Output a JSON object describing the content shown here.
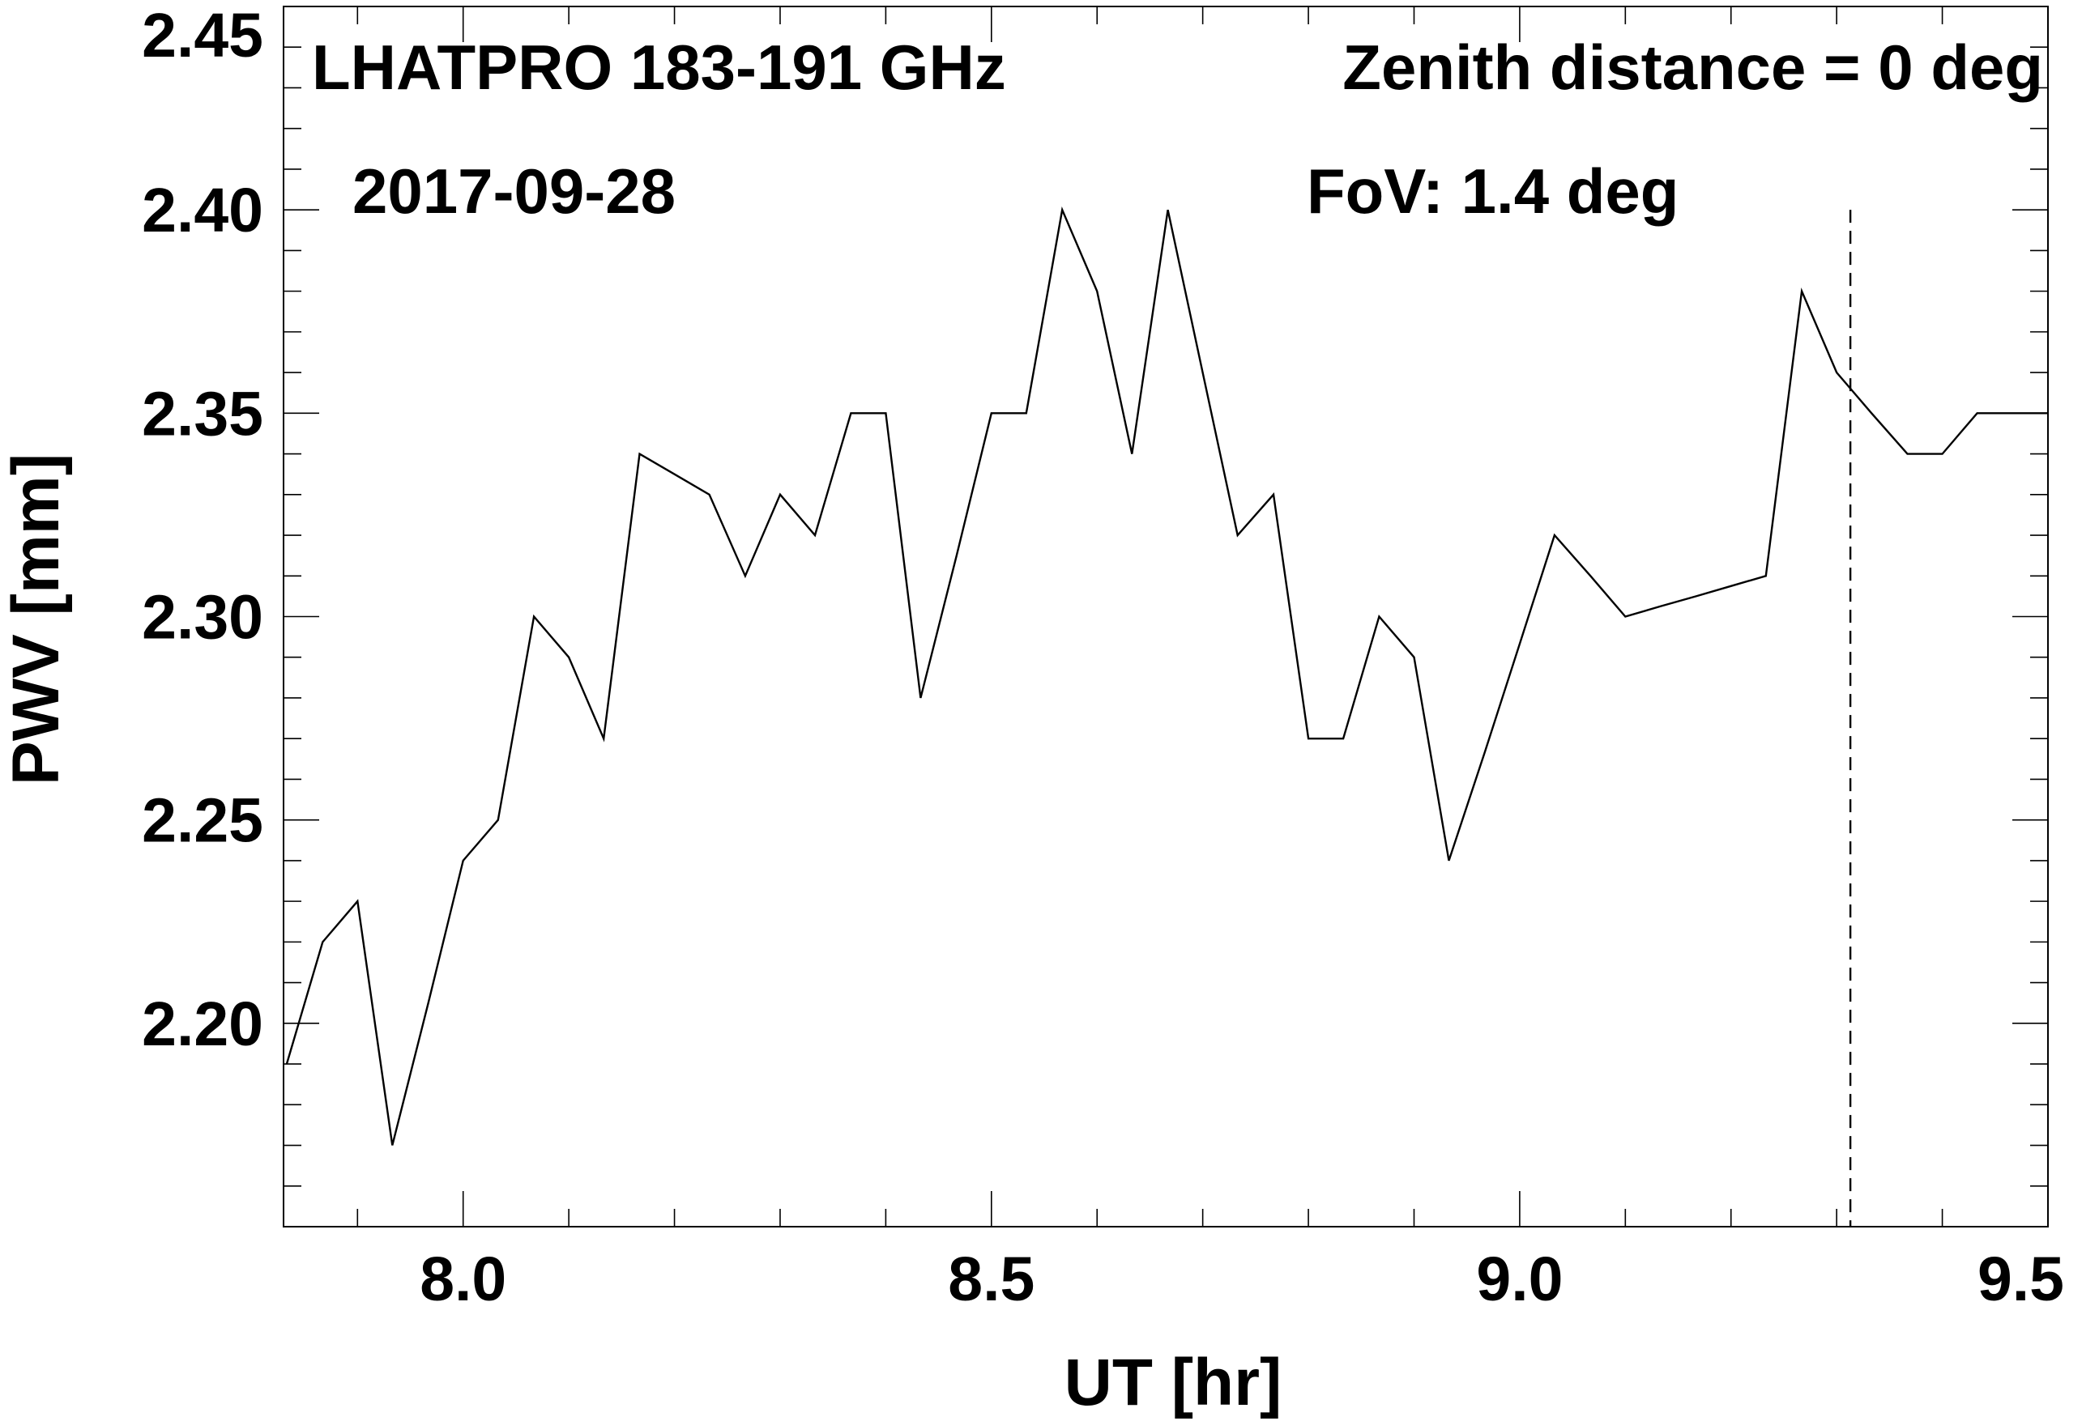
{
  "chart_data": {
    "type": "line",
    "annotations": {
      "instrument": "LHATPRO 183-191 GHz",
      "zenith": "Zenith distance = 0 deg",
      "date": "2017-09-28",
      "fov": "FoV: 1.4 deg"
    },
    "xlabel": "UT [hr]",
    "ylabel": "PWV [mm]",
    "xlim": [
      7.83,
      9.5
    ],
    "ylim": [
      2.15,
      2.45
    ],
    "xticks": [
      8.0,
      8.5,
      9.0,
      9.5
    ],
    "xtick_labels": [
      "8.0",
      "8.5",
      "9.0",
      "9.5"
    ],
    "xminor_step": 0.1,
    "yticks": [
      2.2,
      2.25,
      2.3,
      2.35,
      2.4,
      2.45
    ],
    "ytick_labels": [
      "2.20",
      "2.25",
      "2.30",
      "2.35",
      "2.40",
      "2.45"
    ],
    "yminor_step": 0.01,
    "grid": false,
    "vertical_marker_x": 9.313,
    "vertical_marker_ytop": 2.4,
    "series": [
      {
        "x": [
          7.833,
          7.867,
          7.9,
          7.933,
          7.967,
          8.0,
          8.033,
          8.067,
          8.1,
          8.133,
          8.167,
          8.2,
          8.233,
          8.267,
          8.3,
          8.333,
          8.367,
          8.4,
          8.433,
          8.467,
          8.5,
          8.533,
          8.567,
          8.6,
          8.633,
          8.667,
          8.7,
          8.733,
          8.767,
          8.8,
          8.833,
          8.867,
          8.9,
          8.933,
          8.967,
          9.0,
          9.033,
          9.067,
          9.1,
          9.133,
          9.167,
          9.2,
          9.233,
          9.267,
          9.3,
          9.333,
          9.367,
          9.4,
          9.433,
          9.467,
          9.5
        ],
        "values": [
          2.19,
          2.22,
          2.23,
          2.17,
          2.205,
          2.24,
          2.25,
          2.3,
          2.29,
          2.27,
          2.34,
          2.335,
          2.33,
          2.31,
          2.33,
          2.32,
          2.35,
          2.35,
          2.28,
          2.315,
          2.35,
          2.35,
          2.4,
          2.38,
          2.34,
          2.4,
          2.36,
          2.32,
          2.33,
          2.27,
          2.27,
          2.3,
          2.29,
          2.24,
          2.2667,
          2.2933,
          2.32,
          2.31,
          2.3,
          2.3025,
          2.305,
          2.3075,
          2.31,
          2.38,
          2.36,
          2.35,
          2.34,
          2.34,
          2.35,
          2.35,
          2.35
        ]
      }
    ]
  }
}
